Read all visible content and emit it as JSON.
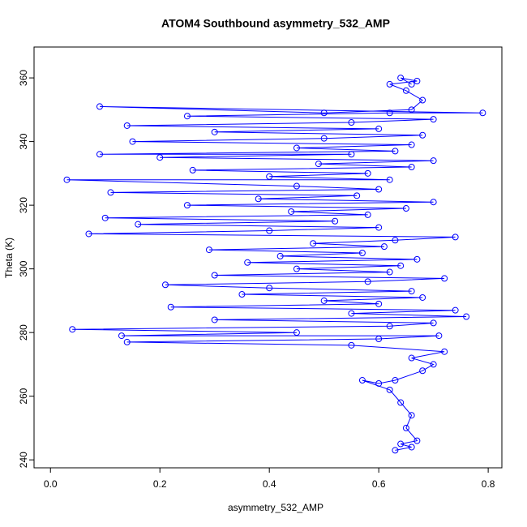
{
  "chart_data": {
    "type": "line",
    "marker": "circle-open",
    "title": "ATOM4 Southbound asymmetry_532_AMP",
    "xlabel": "asymmetry_532_AMP",
    "ylabel": "Theta (K)",
    "color": "#0000ff",
    "xlim": [
      -0.03,
      0.825
    ],
    "ylim": [
      237.5,
      369.7
    ],
    "xticks": [
      {
        "value": 0,
        "label": "0.0"
      },
      0.2,
      0.4,
      0.6,
      0.8
    ],
    "yticks": [
      240,
      260,
      280,
      300,
      320,
      340,
      360
    ],
    "x": [
      0.63,
      0.66,
      0.64,
      0.67,
      0.65,
      0.66,
      0.64,
      0.62,
      0.57,
      0.6,
      0.63,
      0.68,
      0.7,
      0.66,
      0.72,
      0.55,
      0.14,
      0.6,
      0.71,
      0.13,
      0.45,
      0.04,
      0.62,
      0.7,
      0.3,
      0.76,
      0.55,
      0.74,
      0.22,
      0.6,
      0.5,
      0.68,
      0.35,
      0.66,
      0.4,
      0.21,
      0.58,
      0.72,
      0.3,
      0.62,
      0.45,
      0.64,
      0.36,
      0.67,
      0.42,
      0.57,
      0.29,
      0.61,
      0.48,
      0.63,
      0.74,
      0.07,
      0.4,
      0.6,
      0.16,
      0.52,
      0.1,
      0.58,
      0.44,
      0.65,
      0.25,
      0.7,
      0.38,
      0.56,
      0.11,
      0.6,
      0.45,
      0.03,
      0.62,
      0.4,
      0.58,
      0.26,
      0.66,
      0.49,
      0.7,
      0.2,
      0.55,
      0.09,
      0.63,
      0.45,
      0.66,
      0.15,
      0.5,
      0.68,
      0.3,
      0.6,
      0.14,
      0.55,
      0.7,
      0.25,
      0.62,
      0.79,
      0.09,
      0.5,
      0.66,
      0.68,
      0.65,
      0.62,
      0.67,
      0.64,
      0.66
    ],
    "values": [
      243,
      244,
      245,
      246,
      250,
      254,
      258,
      262,
      265,
      264,
      265,
      268,
      270,
      272,
      274,
      276,
      277,
      278,
      279,
      279,
      280,
      281,
      282,
      283,
      284,
      285,
      286,
      287,
      288,
      289,
      290,
      291,
      292,
      293,
      294,
      295,
      296,
      297,
      298,
      299,
      300,
      301,
      302,
      303,
      304,
      305,
      306,
      307,
      308,
      309,
      310,
      311,
      312,
      313,
      314,
      315,
      316,
      317,
      318,
      319,
      320,
      321,
      322,
      323,
      324,
      325,
      326,
      328,
      328,
      329,
      330,
      331,
      332,
      333,
      334,
      335,
      336,
      336,
      337,
      338,
      339,
      340,
      341,
      342,
      343,
      344,
      345,
      346,
      347,
      348,
      349,
      349,
      351,
      349,
      350,
      353,
      356,
      358,
      359,
      360,
      358
    ]
  }
}
